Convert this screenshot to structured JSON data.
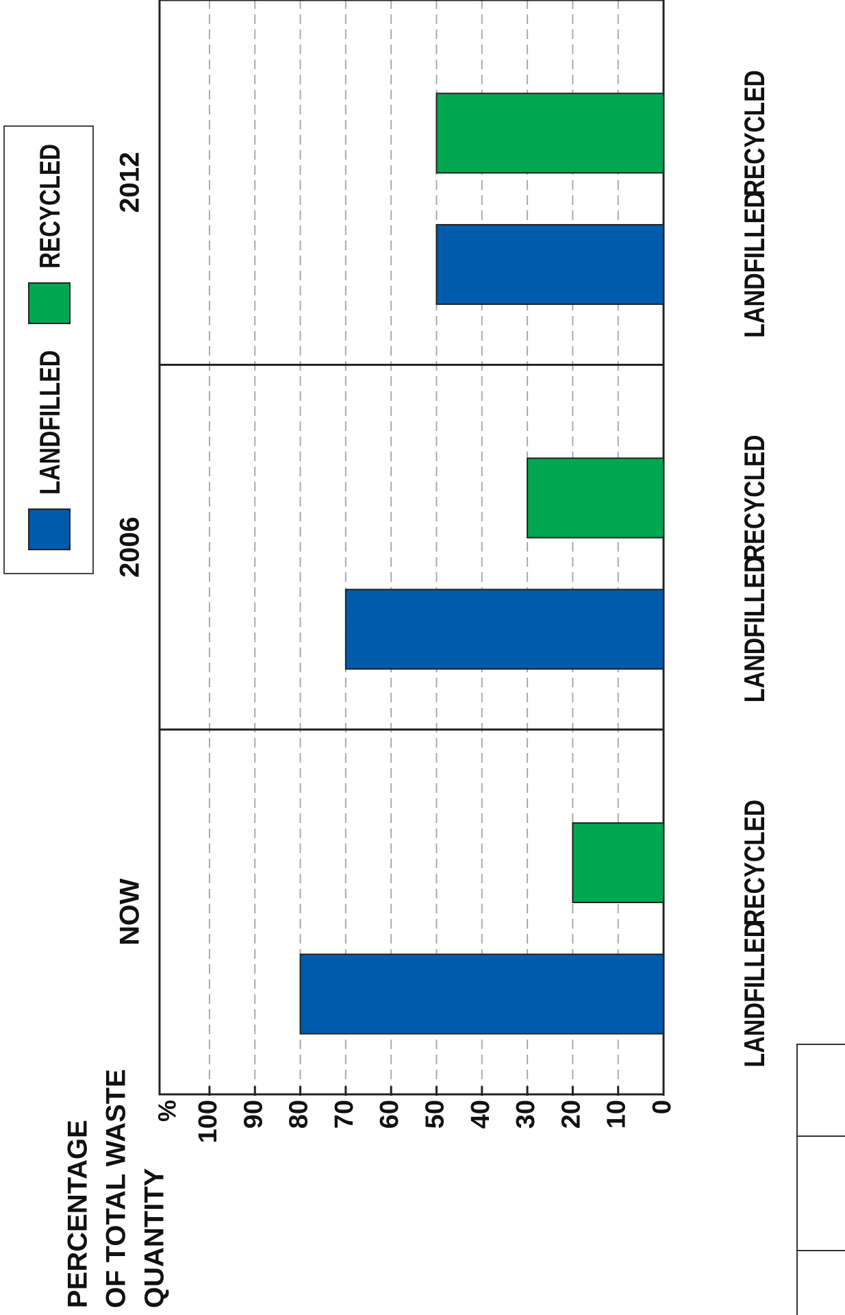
{
  "chart_data": {
    "type": "bar",
    "rotation": -90,
    "categories": [
      "NOW",
      "2006",
      "2012"
    ],
    "series": [
      {
        "name": "LANDFILLED",
        "color": "#005bac",
        "values": [
          80,
          70,
          50
        ]
      },
      {
        "name": "RECYCLED",
        "color": "#00a650",
        "values": [
          20,
          30,
          50
        ]
      }
    ],
    "ylim": [
      0,
      111
    ],
    "yticks": [
      0,
      10,
      20,
      30,
      40,
      50,
      60,
      70,
      80,
      90,
      100
    ],
    "y_unit": "%",
    "ylabel": [
      "PERCENTAGE",
      "OF TOTAL WASTE",
      "QUANTITY"
    ],
    "grid": true,
    "legend": "top-right"
  }
}
